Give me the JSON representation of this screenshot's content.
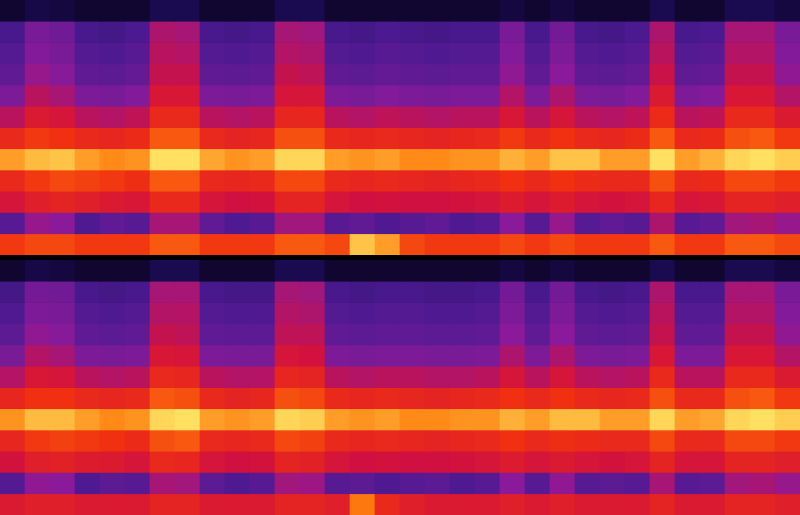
{
  "chart_data": [
    {
      "type": "heatmap",
      "zlim": [
        0,
        100
      ],
      "grid": false,
      "tick_labels": false,
      "cells": [
        [
          12,
          18,
          16,
          12,
          12,
          12,
          20,
          20,
          12,
          12,
          12,
          20,
          20,
          12,
          12,
          12,
          12,
          12,
          12,
          12,
          16,
          12,
          16,
          12,
          12,
          12,
          20,
          12,
          12,
          20,
          20,
          16
        ],
        [
          34,
          46,
          44,
          34,
          33,
          35,
          56,
          55,
          34,
          33,
          34,
          55,
          54,
          34,
          33,
          35,
          34,
          33,
          34,
          34,
          46,
          34,
          45,
          34,
          33,
          35,
          56,
          34,
          35,
          55,
          55,
          46
        ],
        [
          37,
          48,
          46,
          37,
          36,
          38,
          58,
          57,
          37,
          36,
          37,
          57,
          56,
          37,
          36,
          38,
          37,
          36,
          37,
          37,
          48,
          37,
          47,
          37,
          36,
          38,
          58,
          37,
          38,
          57,
          57,
          48
        ],
        [
          40,
          52,
          49,
          40,
          39,
          41,
          60,
          60,
          40,
          39,
          40,
          60,
          59,
          40,
          39,
          41,
          40,
          39,
          40,
          40,
          51,
          40,
          50,
          40,
          39,
          41,
          61,
          40,
          41,
          60,
          60,
          51
        ],
        [
          47,
          58,
          55,
          47,
          46,
          48,
          65,
          65,
          47,
          46,
          47,
          64,
          64,
          47,
          46,
          48,
          47,
          46,
          47,
          47,
          57,
          47,
          56,
          47,
          46,
          48,
          66,
          47,
          48,
          65,
          65,
          57
        ],
        [
          58,
          66,
          64,
          58,
          57,
          59,
          72,
          72,
          58,
          57,
          58,
          71,
          71,
          58,
          57,
          59,
          58,
          57,
          58,
          58,
          65,
          58,
          64,
          58,
          57,
          59,
          73,
          58,
          59,
          72,
          72,
          66
        ],
        [
          72,
          76,
          75,
          72,
          71,
          73,
          80,
          80,
          72,
          70,
          71,
          79,
          79,
          72,
          71,
          72,
          71,
          70,
          71,
          72,
          76,
          72,
          75,
          72,
          71,
          73,
          80,
          72,
          73,
          79,
          80,
          76
        ],
        [
          88,
          91,
          92,
          88,
          86,
          87,
          95,
          95,
          89,
          87,
          88,
          94,
          94,
          88,
          87,
          88,
          86,
          86,
          87,
          87,
          90,
          88,
          92,
          92,
          88,
          88,
          95,
          88,
          90,
          94,
          95,
          93
        ],
        [
          72,
          76,
          78,
          77,
          76,
          74,
          80,
          80,
          72,
          71,
          72,
          78,
          78,
          72,
          71,
          72,
          71,
          70,
          71,
          72,
          75,
          72,
          75,
          73,
          72,
          72,
          79,
          72,
          73,
          78,
          78,
          76
        ],
        [
          64,
          68,
          70,
          68,
          66,
          65,
          72,
          72,
          64,
          62,
          63,
          70,
          70,
          64,
          62,
          63,
          62,
          62,
          63,
          64,
          67,
          64,
          67,
          64,
          63,
          64,
          71,
          64,
          65,
          70,
          70,
          68
        ],
        [
          38,
          52,
          50,
          36,
          40,
          38,
          55,
          55,
          40,
          36,
          38,
          54,
          54,
          38,
          40,
          36,
          38,
          40,
          36,
          38,
          50,
          38,
          52,
          38,
          40,
          38,
          56,
          38,
          40,
          54,
          55,
          52
        ],
        [
          76,
          78,
          78,
          76,
          76,
          76,
          80,
          80,
          76,
          76,
          76,
          80,
          80,
          78,
          92,
          88,
          78,
          76,
          76,
          76,
          78,
          76,
          78,
          76,
          76,
          76,
          80,
          76,
          76,
          80,
          80,
          78
        ]
      ]
    },
    {
      "type": "heatmap",
      "zlim": [
        0,
        100
      ],
      "grid": false,
      "tick_labels": false,
      "cells": [
        [
          12,
          18,
          16,
          12,
          12,
          12,
          20,
          20,
          12,
          12,
          12,
          20,
          20,
          12,
          12,
          12,
          12,
          12,
          12,
          12,
          16,
          12,
          16,
          12,
          12,
          12,
          20,
          12,
          12,
          20,
          20,
          16
        ],
        [
          33,
          45,
          44,
          34,
          33,
          34,
          55,
          55,
          34,
          33,
          33,
          55,
          54,
          34,
          33,
          34,
          34,
          33,
          33,
          34,
          45,
          34,
          45,
          34,
          33,
          34,
          56,
          34,
          34,
          55,
          55,
          46
        ],
        [
          36,
          47,
          46,
          37,
          36,
          37,
          57,
          57,
          37,
          36,
          36,
          57,
          56,
          37,
          36,
          37,
          37,
          36,
          36,
          37,
          47,
          37,
          47,
          37,
          36,
          37,
          58,
          37,
          37,
          57,
          57,
          48
        ],
        [
          39,
          51,
          49,
          40,
          39,
          40,
          60,
          59,
          40,
          39,
          39,
          59,
          59,
          40,
          39,
          40,
          40,
          39,
          39,
          40,
          50,
          40,
          50,
          40,
          39,
          40,
          60,
          40,
          40,
          60,
          60,
          51
        ],
        [
          46,
          57,
          55,
          47,
          46,
          47,
          65,
          64,
          47,
          46,
          46,
          64,
          63,
          47,
          46,
          47,
          47,
          46,
          46,
          47,
          56,
          47,
          56,
          47,
          46,
          47,
          65,
          47,
          47,
          65,
          65,
          57
        ],
        [
          57,
          65,
          64,
          58,
          57,
          58,
          72,
          71,
          58,
          57,
          57,
          71,
          70,
          58,
          57,
          58,
          58,
          57,
          57,
          58,
          64,
          58,
          64,
          58,
          57,
          58,
          72,
          58,
          58,
          72,
          72,
          66
        ],
        [
          71,
          75,
          75,
          72,
          71,
          72,
          80,
          79,
          72,
          70,
          71,
          79,
          78,
          72,
          71,
          72,
          71,
          70,
          71,
          72,
          75,
          72,
          75,
          72,
          71,
          72,
          79,
          72,
          72,
          79,
          80,
          76
        ],
        [
          87,
          91,
          91,
          88,
          86,
          87,
          94,
          95,
          88,
          87,
          88,
          94,
          93,
          88,
          87,
          88,
          86,
          86,
          87,
          87,
          90,
          88,
          91,
          91,
          88,
          88,
          94,
          88,
          89,
          94,
          95,
          93
        ],
        [
          71,
          76,
          77,
          76,
          75,
          73,
          79,
          80,
          72,
          71,
          72,
          78,
          77,
          72,
          71,
          72,
          71,
          70,
          71,
          72,
          75,
          72,
          74,
          73,
          72,
          72,
          78,
          72,
          72,
          78,
          78,
          76
        ],
        [
          63,
          68,
          69,
          67,
          66,
          64,
          72,
          71,
          64,
          62,
          63,
          70,
          69,
          64,
          62,
          63,
          62,
          62,
          63,
          64,
          67,
          64,
          66,
          64,
          63,
          64,
          70,
          64,
          64,
          70,
          70,
          68
        ],
        [
          37,
          51,
          50,
          36,
          39,
          38,
          55,
          54,
          39,
          36,
          38,
          54,
          53,
          38,
          39,
          36,
          38,
          39,
          36,
          38,
          50,
          38,
          51,
          38,
          39,
          38,
          55,
          38,
          39,
          54,
          55,
          52
        ],
        [
          66,
          68,
          68,
          66,
          66,
          66,
          70,
          70,
          66,
          66,
          66,
          70,
          70,
          68,
          84,
          72,
          68,
          66,
          66,
          66,
          68,
          66,
          68,
          66,
          66,
          66,
          70,
          66,
          66,
          70,
          70,
          68
        ]
      ]
    }
  ]
}
